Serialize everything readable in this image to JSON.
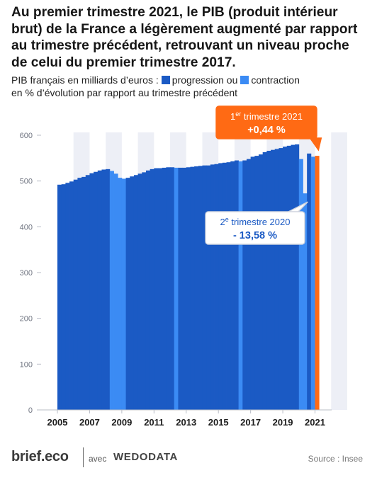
{
  "chart_data": {
    "type": "bar",
    "title": "Au premier trimestre 2021, le PIB (produit intérieur brut) de la France a légèrement augmenté par rapport au trimestre précédent, retrouvant un niveau proche de celui du premier trimestre 2017.",
    "legend_prefix": "PIB français en milliards d’euros :",
    "legend_growth": "progression ou",
    "legend_decline": "contraction",
    "legend_suffix": "en % d’évolution par rapport au trimestre précédent",
    "ylim": [
      0,
      600
    ],
    "yticks": [
      "0",
      "100",
      "200",
      "300",
      "400",
      "500",
      "600"
    ],
    "xticks": [
      "2005",
      "2007",
      "2009",
      "2011",
      "2013",
      "2015",
      "2017",
      "2019",
      "2021"
    ],
    "x_start": 2005,
    "x_end": 2021.25,
    "categories": [
      "2005 T1",
      "2005 T2",
      "2005 T3",
      "2005 T4",
      "2006 T1",
      "2006 T2",
      "2006 T3",
      "2006 T4",
      "2007 T1",
      "2007 T2",
      "2007 T3",
      "2007 T4",
      "2008 T1",
      "2008 T2",
      "2008 T3",
      "2008 T4",
      "2009 T1",
      "2009 T2",
      "2009 T3",
      "2009 T4",
      "2010 T1",
      "2010 T2",
      "2010 T3",
      "2010 T4",
      "2011 T1",
      "2011 T2",
      "2011 T3",
      "2011 T4",
      "2012 T1",
      "2012 T2",
      "2012 T3",
      "2012 T4",
      "2013 T1",
      "2013 T2",
      "2013 T3",
      "2013 T4",
      "2014 T1",
      "2014 T2",
      "2014 T3",
      "2014 T4",
      "2015 T1",
      "2015 T2",
      "2015 T3",
      "2015 T4",
      "2016 T1",
      "2016 T2",
      "2016 T3",
      "2016 T4",
      "2017 T1",
      "2017 T2",
      "2017 T3",
      "2017 T4",
      "2018 T1",
      "2018 T2",
      "2018 T3",
      "2018 T4",
      "2019 T1",
      "2019 T2",
      "2019 T3",
      "2019 T4",
      "2020 T1",
      "2020 T2",
      "2020 T3",
      "2020 T4",
      "2021 T1"
    ],
    "values": [
      492,
      493,
      496,
      499,
      503,
      507,
      509,
      513,
      517,
      520,
      523,
      525,
      526,
      522,
      516,
      507,
      505,
      507,
      510,
      513,
      516,
      519,
      523,
      526,
      528,
      528,
      529,
      530,
      530,
      529,
      529,
      529,
      530,
      531,
      532,
      533,
      534,
      534,
      536,
      537,
      539,
      540,
      541,
      543,
      545,
      543,
      545,
      548,
      553,
      555,
      558,
      563,
      566,
      568,
      570,
      572,
      575,
      577,
      579,
      580,
      548,
      473,
      560,
      553,
      555
    ],
    "colors": {
      "growth": "#1b5ac4",
      "decline": "#3b8bf4",
      "highlight": "#ff6a14",
      "band": "#edeff6",
      "axis": "#b8bcc6",
      "tick_text": "#6f7480"
    },
    "annotations": [
      {
        "line1_base": "1",
        "line1_sup": "er",
        "line1_rest": " trimestre 2021",
        "line2": "+0,44 %"
      },
      {
        "line1_base": "2",
        "line1_sup": "e",
        "line1_rest": " trimestre 2020",
        "line2": "- 13,58 %"
      }
    ]
  },
  "footer": {
    "brand": "brief.eco",
    "with": "avec",
    "partner": "WEDODATA",
    "source": "Source : Insee"
  }
}
